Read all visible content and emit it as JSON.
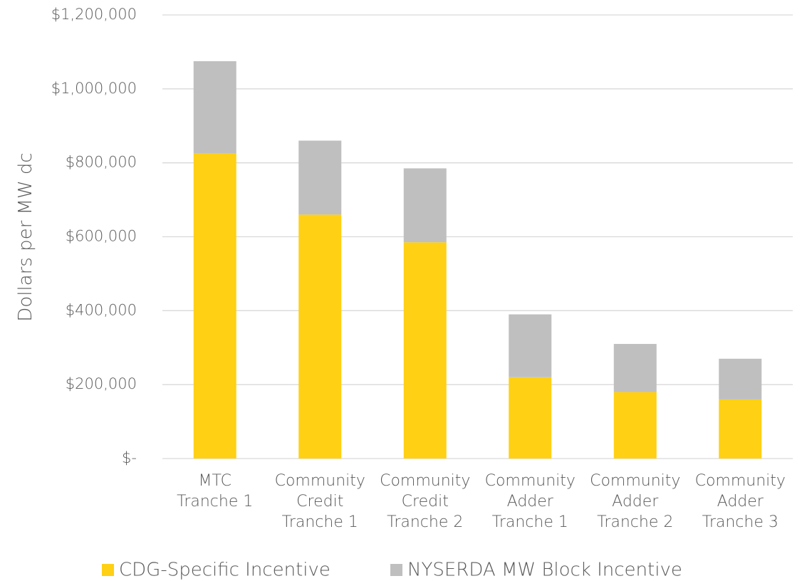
{
  "chart_data": {
    "type": "stacked_bar",
    "y_label": "Dollars per MW dc",
    "categories": [
      [
        "MTC",
        "Tranche 1"
      ],
      [
        "Community",
        "Credit",
        "Tranche 1"
      ],
      [
        "Community",
        "Credit",
        "Tranche 2"
      ],
      [
        "Community",
        "Adder",
        "Tranche 1"
      ],
      [
        "Community",
        "Adder",
        "Tranche 2"
      ],
      [
        "Community",
        "Adder",
        "Tranche 3"
      ]
    ],
    "series": [
      {
        "name": "CDG-Specific Incentive",
        "color": "#ffd014",
        "values": [
          825000,
          660000,
          585000,
          220000,
          180000,
          160000
        ]
      },
      {
        "name": "NYSERDA MW Block Incentive",
        "color": "#bfbfbf",
        "values": [
          250000,
          200000,
          200000,
          170000,
          130000,
          110000
        ]
      }
    ],
    "ylim": [
      0,
      1200000
    ],
    "yticks": [
      {
        "value": 0,
        "label": "$-"
      },
      {
        "value": 200000,
        "label": "$200,000"
      },
      {
        "value": 400000,
        "label": "$400,000"
      },
      {
        "value": 600000,
        "label": "$600,000"
      },
      {
        "value": 800000,
        "label": "$800,000"
      },
      {
        "value": 1000000,
        "label": "$1,000,000"
      },
      {
        "value": 1200000,
        "label": "$1,200,000"
      }
    ],
    "grid": true,
    "legend": "bottom"
  }
}
